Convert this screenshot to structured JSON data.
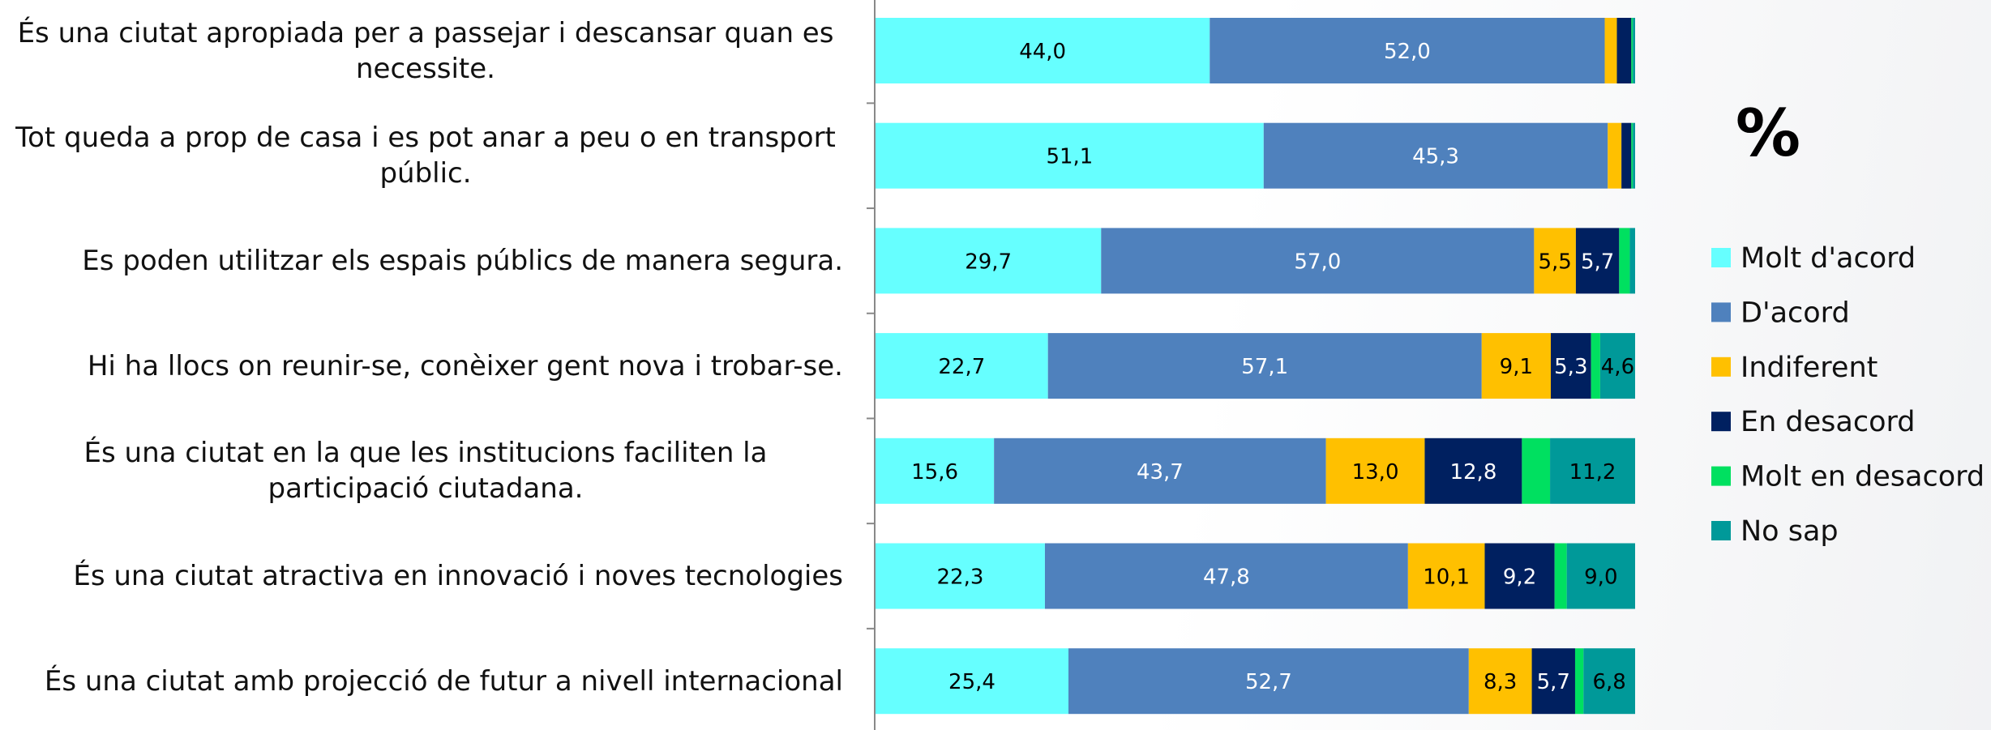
{
  "chart_data": {
    "type": "stacked_barh",
    "title": "%",
    "categories": [
      "És una ciutat apropiada per a passejar i descansar quan es necessite.",
      "Tot queda a prop de casa i es pot anar a peu o en transport públic.",
      "Es poden utilitzar els espais públics de manera segura.",
      "Hi ha llocs on reunir-se, conèixer gent nova i trobar-se.",
      "És una ciutat en la que les institucions faciliten la participació ciutadana.",
      "És una ciutat atractiva en innovació i noves tecnologies",
      "És una ciutat amb projecció de futur a nivell internacional"
    ],
    "xlim": [
      0,
      100
    ],
    "series": [
      {
        "name": "Molt d'acord",
        "color": "#66ffff",
        "label_color": "#000000",
        "values": [
          44.0,
          51.1,
          29.7,
          22.7,
          15.6,
          22.3,
          25.4
        ],
        "value_labels": [
          "44,0",
          "51,1",
          "29,7",
          "22,7",
          "15,6",
          "22,3",
          "25,4"
        ]
      },
      {
        "name": "D'acord",
        "color": "#4f81bd",
        "label_color": "#ffffff",
        "values": [
          52.0,
          45.3,
          57.0,
          57.1,
          43.7,
          47.8,
          52.7
        ],
        "value_labels": [
          "52,0",
          "45,3",
          "57,0",
          "57,1",
          "43,7",
          "47,8",
          "52,7"
        ]
      },
      {
        "name": "Indiferent",
        "color": "#ffc000",
        "label_color": "#000000",
        "values": [
          1.6,
          1.8,
          5.5,
          9.1,
          13.0,
          10.1,
          8.3
        ],
        "value_labels": [
          null,
          null,
          "5,5",
          "9,1",
          "13,0",
          "10,1",
          "8,3"
        ]
      },
      {
        "name": "En desacord",
        "color": "#002060",
        "label_color": "#ffffff",
        "values": [
          1.9,
          1.3,
          5.7,
          5.3,
          12.8,
          9.2,
          5.7
        ],
        "value_labels": [
          null,
          null,
          "5,7",
          "5,3",
          "12,8",
          "9,2",
          "5,7"
        ]
      },
      {
        "name": "Molt en desacord",
        "color": "#00e060",
        "label_color": "#000000",
        "values": [
          0.2,
          0.2,
          1.4,
          1.2,
          3.7,
          1.6,
          1.1
        ],
        "value_labels": [
          null,
          null,
          null,
          null,
          null,
          null,
          null
        ]
      },
      {
        "name": "No sap",
        "color": "#009999",
        "label_color": "#000000",
        "values": [
          0.3,
          0.3,
          0.7,
          4.6,
          11.2,
          9.0,
          6.8
        ],
        "value_labels": [
          null,
          null,
          null,
          "4,6",
          "11,2",
          "9,0",
          "6,8"
        ]
      }
    ]
  }
}
